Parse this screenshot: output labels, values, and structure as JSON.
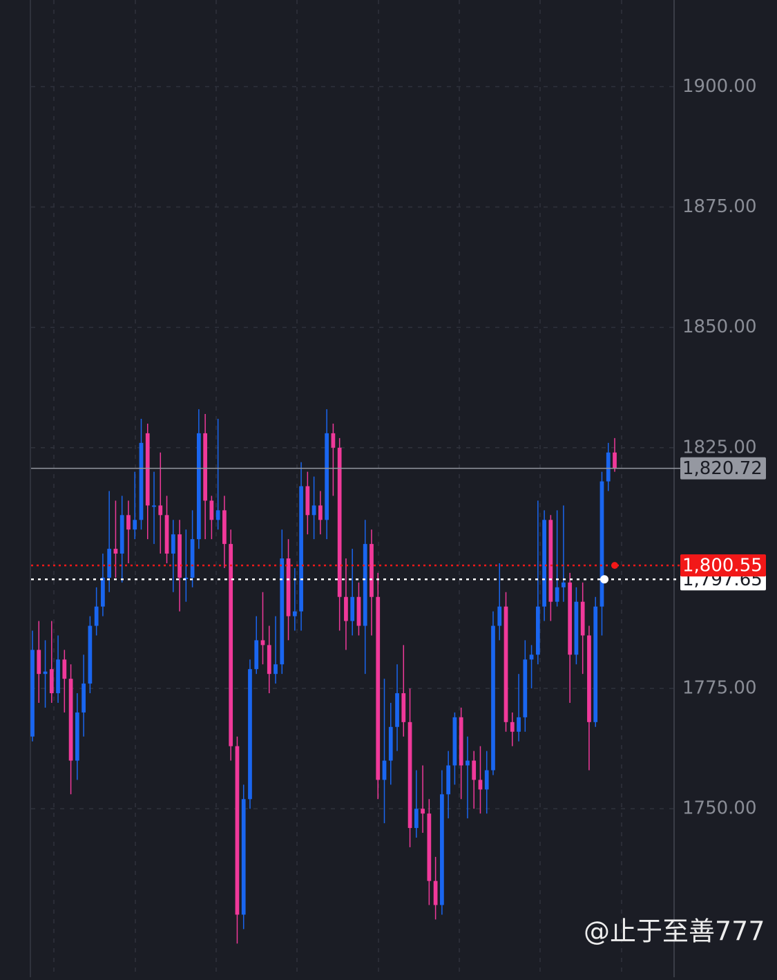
{
  "chart_data": {
    "type": "candlestick",
    "up_color": "#1a66f0",
    "down_color": "#f0399a",
    "open": [
      1765,
      1783,
      1778,
      1779,
      1774,
      1781,
      1777,
      1760,
      1770,
      1776,
      1788,
      1792,
      1798,
      1804,
      1803,
      1811,
      1808,
      1810,
      1828,
      1813,
      1813,
      1811,
      1803,
      1807,
      1798,
      1798,
      1806,
      1828,
      1814,
      1810,
      1812,
      1805,
      1763,
      1728,
      1752,
      1779,
      1785,
      1784,
      1778,
      1780,
      1802,
      1790,
      1791,
      1817,
      1811,
      1813,
      1810,
      1828,
      1825,
      1794,
      1789,
      1794,
      1788,
      1805,
      1794,
      1756,
      1760,
      1767,
      1774,
      1768,
      1746,
      1750,
      1749,
      1735,
      1730,
      1753,
      1759,
      1769,
      1759,
      1760,
      1756,
      1754,
      1758,
      1788,
      1792,
      1768,
      1766,
      1769,
      1781,
      1782,
      1792,
      1810,
      1793,
      1796,
      1797,
      1782,
      1793,
      1786,
      1768,
      1792,
      1818,
      1824
    ],
    "high": [
      1787,
      1789,
      1785,
      1789,
      1786,
      1783,
      1780,
      1774,
      1782,
      1790,
      1796,
      1803,
      1816,
      1814,
      1815,
      1814,
      1820,
      1831,
      1830,
      1820,
      1824,
      1815,
      1810,
      1810,
      1808,
      1812,
      1833,
      1832,
      1815,
      1831,
      1815,
      1808,
      1765,
      1755,
      1781,
      1790,
      1795,
      1788,
      1790,
      1808,
      1806,
      1800,
      1822,
      1820,
      1819,
      1816,
      1833,
      1830,
      1827,
      1802,
      1804,
      1797,
      1810,
      1808,
      1799,
      1777,
      1772,
      1780,
      1784,
      1775,
      1758,
      1759,
      1752,
      1740,
      1758,
      1762,
      1770,
      1771,
      1765,
      1762,
      1763,
      1762,
      1791,
      1801,
      1795,
      1770,
      1778,
      1785,
      1784,
      1814,
      1812,
      1811,
      1812,
      1813,
      1799,
      1796,
      1797,
      1788,
      1794,
      1820,
      1826,
      1827
    ],
    "low": [
      1764,
      1772,
      1771,
      1772,
      1772,
      1770,
      1753,
      1756,
      1765,
      1774,
      1786,
      1790,
      1795,
      1798,
      1797,
      1801,
      1806,
      1808,
      1806,
      1805,
      1803,
      1801,
      1795,
      1791,
      1793,
      1796,
      1804,
      1806,
      1806,
      1808,
      1800,
      1760,
      1722,
      1725,
      1750,
      1778,
      1780,
      1774,
      1776,
      1778,
      1785,
      1787,
      1787,
      1807,
      1806,
      1807,
      1806,
      1815,
      1787,
      1783,
      1786,
      1786,
      1778,
      1786,
      1752,
      1747,
      1755,
      1762,
      1765,
      1742,
      1744,
      1745,
      1730,
      1727,
      1728,
      1748,
      1755,
      1752,
      1748,
      1750,
      1749,
      1749,
      1757,
      1785,
      1766,
      1763,
      1764,
      1766,
      1775,
      1780,
      1789,
      1789,
      1792,
      1793,
      1772,
      1780,
      1778,
      1758,
      1767,
      1786,
      1816,
      1820
    ],
    "close": [
      1783,
      1778,
      1778.5,
      1774,
      1781,
      1777,
      1760,
      1770,
      1776,
      1788,
      1792,
      1798,
      1804,
      1803,
      1811,
      1808,
      1810,
      1826,
      1813,
      1813,
      1811,
      1803,
      1807,
      1798,
      1798,
      1806,
      1828,
      1814,
      1810,
      1812,
      1805,
      1763,
      1728,
      1752,
      1779,
      1785,
      1784,
      1778,
      1780,
      1802,
      1790,
      1791,
      1817,
      1811,
      1813,
      1810,
      1828,
      1825,
      1794,
      1789,
      1794,
      1788,
      1805,
      1794,
      1756,
      1760,
      1767,
      1774,
      1768,
      1746,
      1750,
      1749,
      1735,
      1730,
      1753,
      1759,
      1769,
      1759,
      1760,
      1756,
      1754,
      1758,
      1788,
      1792,
      1768,
      1766,
      1769,
      1781,
      1782,
      1792,
      1810,
      1793,
      1796,
      1797,
      1782,
      1793,
      1786,
      1768,
      1792,
      1818,
      1824,
      1820.72
    ],
    "ylim": [
      1715,
      1918
    ],
    "yticks": [
      {
        "value": 1750,
        "label": "1750.00"
      },
      {
        "value": 1775,
        "label": "1775.00"
      },
      {
        "value": 1825,
        "label": "1825.00"
      },
      {
        "value": 1850,
        "label": "1850.00"
      },
      {
        "value": 1875,
        "label": "1875.00"
      },
      {
        "value": 1900,
        "label": "1900.00"
      }
    ],
    "grid": true,
    "price_lines": [
      {
        "value": 1820.72,
        "label": "1,820.72",
        "color": "#9598a1"
      },
      {
        "value": 1797.65,
        "label": "1,797.65",
        "color": "#ffffff"
      },
      {
        "value": 1800.55,
        "label": "1,800.55",
        "color": "#f21818"
      }
    ],
    "watermark": "@止于至善777"
  }
}
